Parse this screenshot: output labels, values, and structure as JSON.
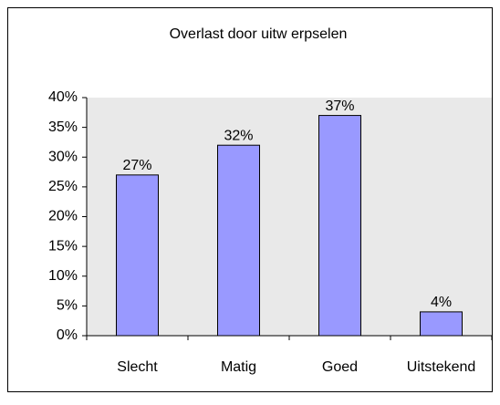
{
  "chart_data": {
    "type": "bar",
    "title": "Overlast door uitw erpselen",
    "categories": [
      "Slecht",
      "Matig",
      "Goed",
      "Uitstekend"
    ],
    "values": [
      27,
      32,
      37,
      4
    ],
    "value_labels": [
      "27%",
      "32%",
      "37%",
      "4%"
    ],
    "color": "#9999ff",
    "ylim": [
      0,
      40
    ],
    "yticks": [
      {
        "value": 0,
        "label": "0%"
      },
      {
        "value": 5,
        "label": "5%"
      },
      {
        "value": 10,
        "label": "10%"
      },
      {
        "value": 15,
        "label": "15%"
      },
      {
        "value": 20,
        "label": "20%"
      },
      {
        "value": 25,
        "label": "25%"
      },
      {
        "value": 30,
        "label": "30%"
      },
      {
        "value": 35,
        "label": "35%"
      },
      {
        "value": 40,
        "label": "40%"
      }
    ],
    "grid": false
  }
}
